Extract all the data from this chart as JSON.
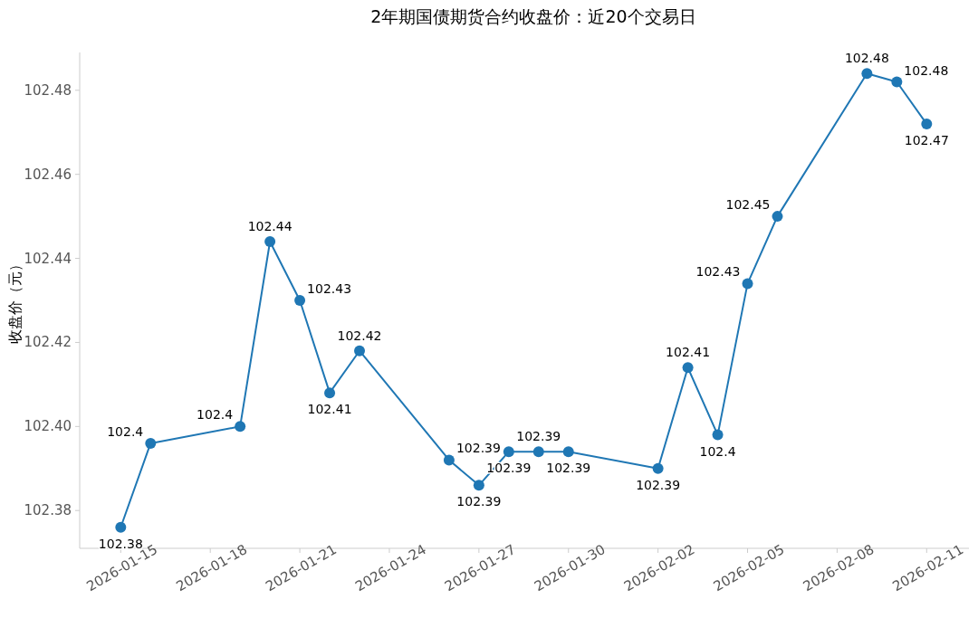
{
  "chart_data": {
    "type": "line",
    "title": "2年期国债期货合约收盘价：近20个交易日",
    "ylabel": "收盘价（元）",
    "x": [
      "2026-01-15",
      "2026-01-16",
      "2026-01-19",
      "2026-01-20",
      "2026-01-21",
      "2026-01-22",
      "2026-01-23",
      "2026-01-26",
      "2026-01-27",
      "2026-01-28",
      "2026-01-29",
      "2026-01-30",
      "2026-02-02",
      "2026-02-03",
      "2026-02-04",
      "2026-02-05",
      "2026-02-06",
      "2026-02-09",
      "2026-02-10",
      "2026-02-11"
    ],
    "values": [
      102.376,
      102.396,
      102.4,
      102.444,
      102.43,
      102.408,
      102.418,
      102.392,
      102.386,
      102.394,
      102.394,
      102.394,
      102.39,
      102.414,
      102.398,
      102.434,
      102.45,
      102.484,
      102.482,
      102.472
    ],
    "value_labels": [
      "102.38",
      "102.4",
      "102.4",
      "102.44",
      "102.43",
      "102.41",
      "102.42",
      "102.39",
      "102.39",
      "102.39",
      "102.39",
      "102.39",
      "102.39",
      "102.41",
      "102.4",
      "102.43",
      "102.45",
      "102.48",
      "102.48",
      "102.47"
    ],
    "color": "#1f77b4",
    "marker": "circle",
    "line_style": "solid",
    "xlim": [
      "2026-01-13T15:00",
      "2026-02-12T10:00"
    ],
    "ylim": [
      102.371,
      102.489
    ],
    "xticks": [
      "2026-01-15",
      "2026-01-18",
      "2026-01-21",
      "2026-01-24",
      "2026-01-27",
      "2026-01-30",
      "2026-02-02",
      "2026-02-05",
      "2026-02-08",
      "2026-02-11"
    ],
    "yticks": [
      102.38,
      {
        "value": 102.4,
        "label": "102.40"
      },
      102.42,
      102.44,
      102.46,
      102.48
    ]
  }
}
